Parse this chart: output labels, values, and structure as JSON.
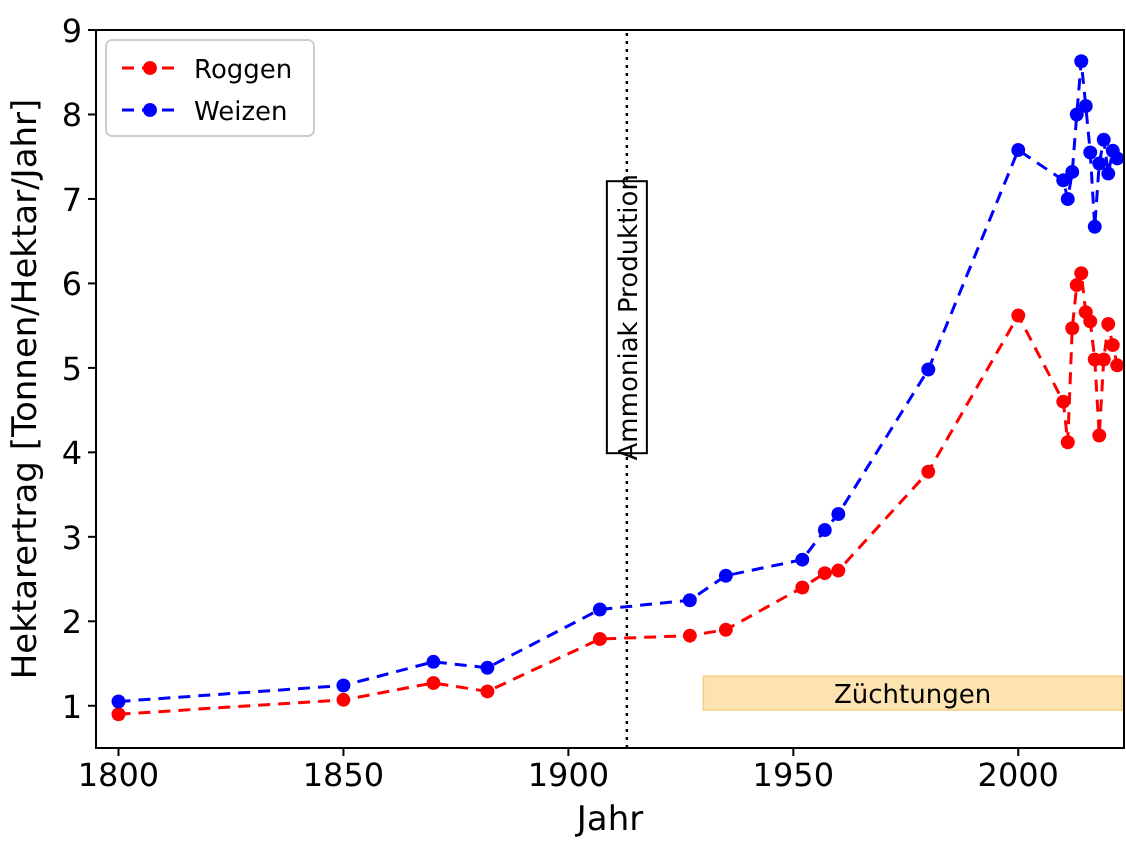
{
  "chart_data": {
    "type": "line",
    "xlabel": "Jahr",
    "ylabel": "Hektarertrag [Tonnen/Hektar/Jahr]",
    "xlim": [
      1795,
      2023.5
    ],
    "ylim": [
      0.5,
      9
    ],
    "xticks": [
      1800,
      1850,
      1900,
      1950,
      2000
    ],
    "yticks": [
      1,
      2,
      3,
      4,
      5,
      6,
      7,
      8,
      9
    ],
    "grid": false,
    "legend": "top left",
    "marker": "circle",
    "line_style": "dashed",
    "series": [
      {
        "name": "Roggen",
        "color": "#ff0000",
        "x": [
          1800,
          1850,
          1870,
          1882,
          1907,
          1927,
          1935,
          1952,
          1957,
          1960,
          1980,
          2000,
          2010,
          2011,
          2012,
          2013,
          2014,
          2015,
          2016,
          2017,
          2018,
          2019,
          2020,
          2021,
          2022
        ],
        "values": [
          0.9,
          1.07,
          1.27,
          1.17,
          1.79,
          1.83,
          1.9,
          2.4,
          2.57,
          2.6,
          3.77,
          5.62,
          4.6,
          4.12,
          5.47,
          5.98,
          6.12,
          5.66,
          5.55,
          5.1,
          4.2,
          5.1,
          5.52,
          5.27,
          5.03
        ]
      },
      {
        "name": "Weizen",
        "color": "#0000ff",
        "x": [
          1800,
          1850,
          1870,
          1882,
          1907,
          1927,
          1935,
          1952,
          1957,
          1960,
          1980,
          2000,
          2010,
          2011,
          2012,
          2013,
          2014,
          2015,
          2016,
          2017,
          2018,
          2019,
          2020,
          2021,
          2022
        ],
        "values": [
          1.05,
          1.24,
          1.52,
          1.45,
          2.14,
          2.25,
          2.54,
          2.73,
          3.08,
          3.27,
          4.98,
          7.58,
          7.22,
          7.0,
          7.32,
          8.0,
          8.63,
          8.1,
          7.55,
          6.67,
          7.42,
          7.7,
          7.3,
          7.57,
          7.48
        ]
      }
    ],
    "ref_lines": [
      {
        "axis": "x",
        "value": 1913,
        "label": "Ammoniak Produktion",
        "line_style": "dotted",
        "color": "#000000"
      }
    ],
    "bands": [
      {
        "axis": "x",
        "from": 1930,
        "to": 2023,
        "label": "Züchtungen",
        "color": "#fde3b0"
      }
    ]
  }
}
